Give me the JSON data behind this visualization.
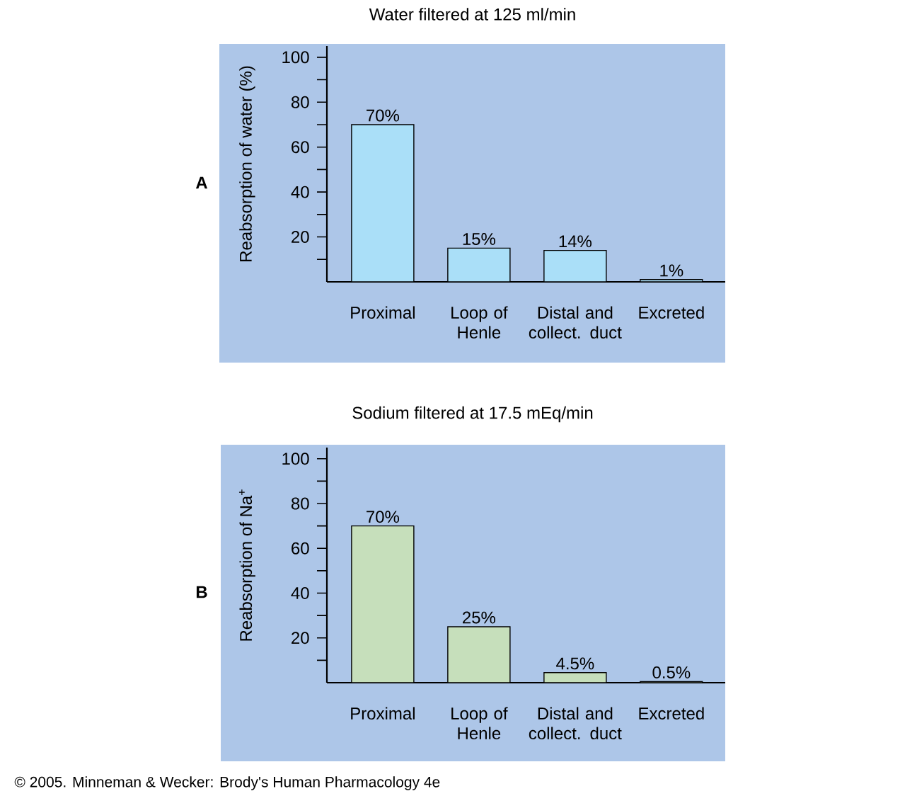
{
  "chart_data": [
    {
      "type": "bar",
      "title": "Water filtered at 125 ml/min",
      "ylabel": "Reabsorption of water (%)",
      "categories": [
        "Proximal",
        "Loop of Henle",
        "Distal and collect. duct",
        "Excreted"
      ],
      "values": [
        70,
        15,
        14,
        1
      ],
      "value_labels": [
        "70%",
        "15%",
        "14%",
        "1%"
      ],
      "color": "#aadff8",
      "ylim": [
        0,
        105
      ],
      "yticks": [
        {
          "value": 10,
          "label": null
        },
        20,
        {
          "value": 30,
          "label": null
        },
        40,
        {
          "value": 50,
          "label": null
        },
        60,
        {
          "value": 70,
          "label": null
        },
        80,
        {
          "value": 90,
          "label": null
        },
        100
      ],
      "annotations": [
        "A"
      ]
    },
    {
      "type": "bar",
      "title": "Sodium filtered at 17.5 mEq/min",
      "ylabel": "Reabsorption of Na$^{+}$",
      "categories": [
        "Proximal",
        "Loop of Henle",
        "Distal and collect. duct",
        "Excreted"
      ],
      "values": [
        70,
        25,
        4.5,
        0.5
      ],
      "value_labels": [
        "70%",
        "25%",
        "4.5%",
        "0.5%"
      ],
      "color": "#c6dfbb",
      "ylim": [
        0,
        105
      ],
      "yticks": [
        {
          "value": 10,
          "label": null
        },
        20,
        {
          "value": 30,
          "label": null
        },
        40,
        {
          "value": 50,
          "label": null
        },
        60,
        {
          "value": 70,
          "label": null
        },
        80,
        {
          "value": 90,
          "label": null
        },
        100
      ],
      "annotations": [
        "B",
        "© 2005. Minneman & Wecker: Brody's Human Pharmacology 4e"
      ]
    }
  ]
}
